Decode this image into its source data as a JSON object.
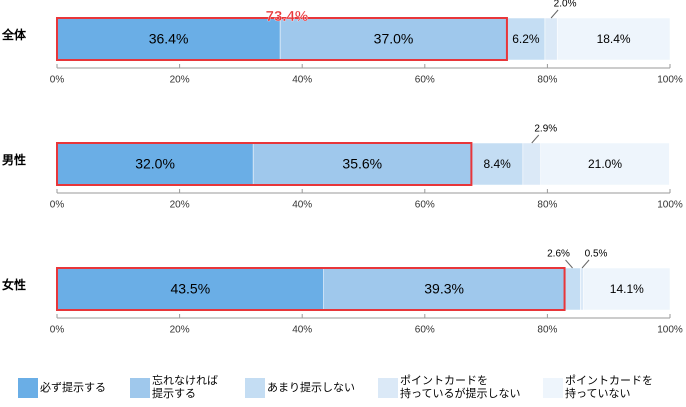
{
  "chart_data": {
    "type": "stacked-bar",
    "orientation": "horizontal",
    "categories": [
      "全体",
      "男性",
      "女性"
    ],
    "series": [
      {
        "name": "必ず提示する",
        "color": "#6aaee6",
        "values": [
          36.4,
          32.0,
          43.5
        ],
        "value_labels": [
          "36.4%",
          "32.0%",
          "43.5%"
        ]
      },
      {
        "name": "忘れなければ\n提示する",
        "color": "#9fc8ec",
        "values": [
          37.0,
          35.6,
          39.3
        ],
        "value_labels": [
          "37.0%",
          "35.6%",
          "39.3%"
        ]
      },
      {
        "name": "あまり提示しない",
        "color": "#c4ddf3",
        "values": [
          6.2,
          8.4,
          2.6
        ],
        "value_labels": [
          "6.2%",
          "8.4%",
          "2.6%"
        ]
      },
      {
        "name": "ポイントカードを\n持っているが提示しない",
        "color": "#dbe9f7",
        "values": [
          2.0,
          2.9,
          0.5
        ],
        "value_labels": [
          "2.0%",
          "2.9%",
          "0.5%"
        ]
      },
      {
        "name": "ポイントカードを\n持っていない",
        "color": "#eef5fc",
        "values": [
          18.4,
          21.0,
          14.1
        ],
        "value_labels": [
          "18.4%",
          "21.0%",
          "14.1%"
        ]
      }
    ],
    "annotation": {
      "value": 73.4,
      "label": "73.4%"
    },
    "xlim": [
      0,
      100
    ],
    "xticks": [
      {
        "value": 0,
        "label": "0%"
      },
      {
        "value": 20,
        "label": "20%"
      },
      {
        "value": 40,
        "label": "40%"
      },
      {
        "value": 60,
        "label": "60%"
      },
      {
        "value": 80,
        "label": "80%"
      },
      {
        "value": 100,
        "label": "100%"
      }
    ]
  }
}
